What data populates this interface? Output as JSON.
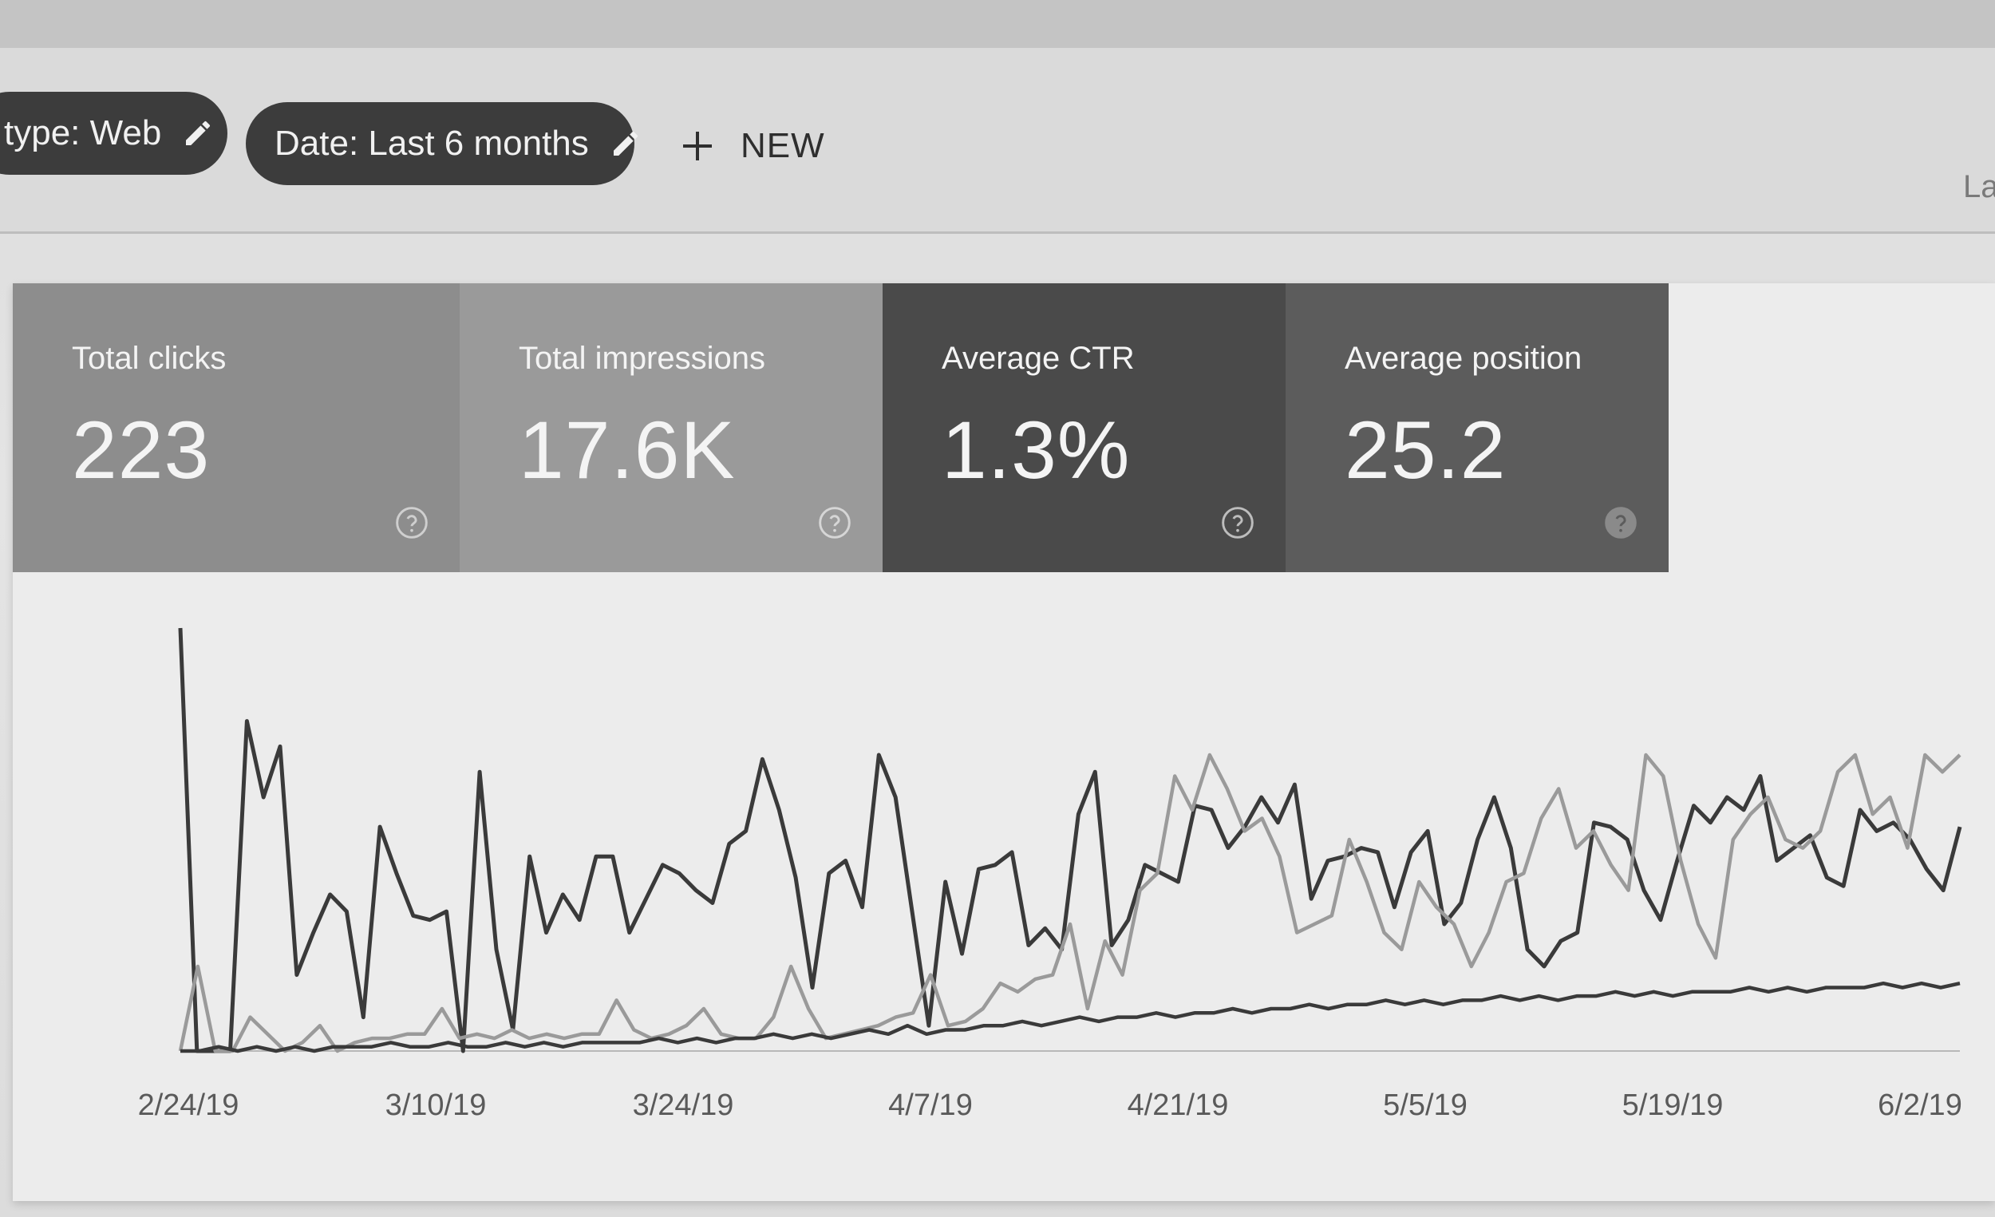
{
  "filters": {
    "type_chip": "type: Web",
    "date_chip": "Date: Last 6 months",
    "new_label": "NEW",
    "edge_text": "La"
  },
  "icons": {
    "edit": "pencil-icon",
    "add": "plus-icon",
    "help": "help-circle-icon"
  },
  "metrics": [
    {
      "label": "Total clicks",
      "value": "223"
    },
    {
      "label": "Total impressions",
      "value": "17.6K"
    },
    {
      "label": "Average CTR",
      "value": "1.3%"
    },
    {
      "label": "Average position",
      "value": "25.2"
    }
  ],
  "colors": {
    "chip": "#3c3c3c",
    "card_clicks": "#8d8d8d",
    "card_impressions": "#9a9a9a",
    "card_ctr": "#4a4a4a",
    "card_position": "#5c5c5c",
    "line_dark": "#3a3a3a",
    "line_mid": "#7a7a7a",
    "line_light": "#9a9a9a"
  },
  "chart_data": {
    "type": "line",
    "x_ticks": [
      "2/24/19",
      "3/10/19",
      "3/24/19",
      "4/7/19",
      "4/21/19",
      "5/5/19",
      "5/19/19",
      "6/2/19"
    ],
    "y_axis_labels": "none",
    "y_range": [
      0,
      100
    ],
    "grid": false,
    "legend": "none",
    "series": [
      {
        "values": [
          100,
          0,
          0,
          0,
          78,
          60,
          72,
          18,
          28,
          37,
          33,
          8,
          53,
          42,
          32,
          31,
          33,
          0,
          66,
          24,
          5,
          46,
          28,
          37,
          31,
          46,
          46,
          28,
          36,
          44,
          42,
          38,
          35,
          49,
          52,
          69,
          57,
          41,
          15,
          42,
          45,
          34,
          70,
          60,
          33,
          6,
          40,
          23,
          43,
          44,
          47,
          25,
          29,
          24,
          56,
          66,
          25,
          31,
          44,
          42,
          40,
          58,
          57,
          48,
          53,
          60,
          54,
          63,
          36,
          45,
          46,
          48,
          47,
          34,
          47,
          52,
          30,
          35,
          50,
          60,
          48,
          24,
          20,
          26,
          28,
          54,
          53,
          50,
          38,
          31,
          45,
          58,
          54,
          60,
          57,
          65,
          45,
          48,
          51,
          41,
          39,
          57,
          52,
          54,
          50,
          43,
          38,
          53
        ]
      },
      {
        "values": [
          0,
          20,
          0,
          0,
          8,
          4,
          0,
          2,
          6,
          0,
          2,
          3,
          3,
          4,
          4,
          10,
          3,
          4,
          3,
          5,
          3,
          4,
          3,
          4,
          4,
          12,
          5,
          3,
          4,
          6,
          10,
          4,
          3,
          3,
          8,
          20,
          10,
          3,
          4,
          5,
          6,
          8,
          9,
          18,
          6,
          7,
          10,
          16,
          14,
          17,
          18,
          30,
          10,
          26,
          18,
          38,
          42,
          65,
          57,
          70,
          62,
          52,
          55,
          46,
          28,
          30,
          32,
          50,
          40,
          28,
          24,
          40,
          34,
          30,
          20,
          28,
          40,
          42,
          55,
          62,
          48,
          52,
          44,
          38,
          70,
          65,
          45,
          30,
          22,
          50,
          56,
          60,
          50,
          48,
          52,
          66,
          70,
          56,
          60,
          48,
          70,
          66,
          70
        ]
      },
      {
        "values": [
          0,
          0,
          1,
          0,
          1,
          0,
          1,
          0,
          1,
          1,
          1,
          2,
          1,
          1,
          2,
          1,
          1,
          2,
          1,
          2,
          1,
          2,
          2,
          2,
          2,
          3,
          2,
          3,
          2,
          3,
          3,
          4,
          3,
          4,
          3,
          4,
          5,
          4,
          6,
          4,
          5,
          5,
          6,
          6,
          7,
          6,
          7,
          8,
          7,
          8,
          8,
          9,
          8,
          9,
          9,
          10,
          9,
          10,
          10,
          11,
          10,
          11,
          11,
          12,
          11,
          12,
          11,
          12,
          12,
          13,
          12,
          13,
          12,
          13,
          13,
          14,
          13,
          14,
          13,
          14,
          14,
          14,
          15,
          14,
          15,
          14,
          15,
          15,
          15,
          16,
          15,
          16,
          15,
          16
        ]
      }
    ]
  }
}
